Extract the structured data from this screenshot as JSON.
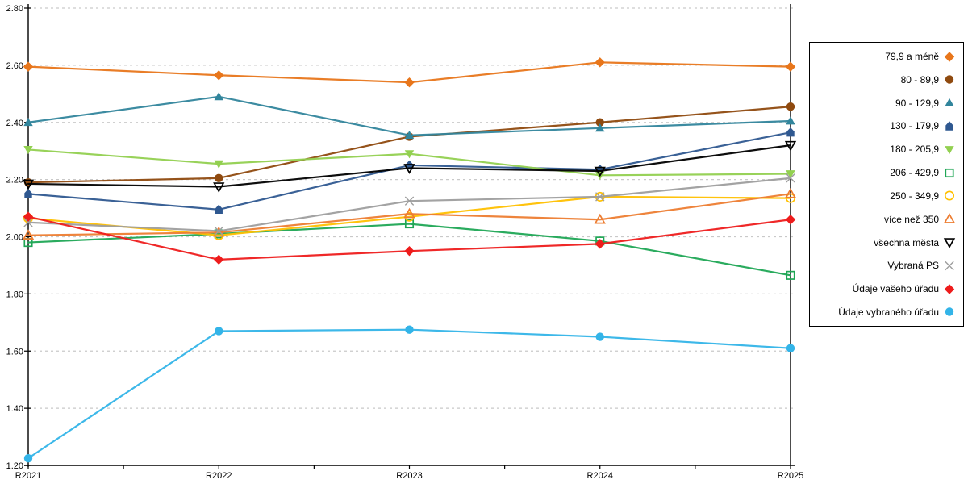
{
  "chart_data": {
    "type": "line",
    "title": "",
    "xlabel": "",
    "ylabel": "",
    "x_categories": [
      "R2021",
      "R2022",
      "R2023",
      "R2024",
      "R2025"
    ],
    "ylim": [
      1.2,
      2.8
    ],
    "ytick_labels": [
      "2.80",
      "2.60",
      "2.40",
      "2.20",
      "2.00",
      "1.80",
      "1.60",
      "1.40",
      "1.20"
    ],
    "grid": "horizontal-dashed",
    "legend_position": "right",
    "series": [
      {
        "name": "79,9 a méně",
        "marker": "diamond",
        "fill": "filled",
        "color": "#E8761B",
        "values": [
          2.595,
          2.565,
          2.54,
          2.61,
          2.595
        ]
      },
      {
        "name": "80 - 89,9",
        "marker": "circle",
        "fill": "filled",
        "color": "#8F4A0F",
        "values": [
          2.19,
          2.205,
          2.35,
          2.4,
          2.455
        ]
      },
      {
        "name": "90 - 129,9",
        "marker": "triangle-up",
        "fill": "filled",
        "color": "#31859C",
        "values": [
          2.4,
          2.49,
          2.355,
          2.38,
          2.405
        ]
      },
      {
        "name": "130 - 179,9",
        "marker": "pentagon",
        "fill": "filled",
        "color": "#2F5890",
        "values": [
          2.15,
          2.095,
          2.25,
          2.235,
          2.365
        ]
      },
      {
        "name": "180 - 205,9",
        "marker": "triangle-down",
        "fill": "filled",
        "color": "#92D050",
        "values": [
          2.305,
          2.255,
          2.29,
          2.215,
          2.22
        ]
      },
      {
        "name": "206 - 429,9",
        "marker": "square",
        "fill": "open",
        "color": "#1FA655",
        "values": [
          1.98,
          2.01,
          2.045,
          1.985,
          1.865
        ]
      },
      {
        "name": "250 - 349,9",
        "marker": "circle",
        "fill": "open",
        "color": "#FFC000",
        "values": [
          2.065,
          2.005,
          2.07,
          2.14,
          2.135
        ]
      },
      {
        "name": "více než 350",
        "marker": "triangle-up",
        "fill": "open",
        "color": "#ED7D31",
        "values": [
          2.005,
          2.015,
          2.08,
          2.06,
          2.15
        ]
      },
      {
        "name": "všechna města",
        "marker": "triangle-down",
        "fill": "open",
        "color": "#000000",
        "values": [
          2.185,
          2.175,
          2.24,
          2.23,
          2.32
        ]
      },
      {
        "name": "Vybraná PS",
        "marker": "x",
        "fill": "open",
        "color": "#9E9E9E",
        "values": [
          2.05,
          2.02,
          2.125,
          2.14,
          2.205
        ]
      },
      {
        "name": "Údaje vašeho úřadu",
        "marker": "diamond",
        "fill": "filled",
        "color": "#EE1C1C",
        "values": [
          2.07,
          1.92,
          1.95,
          1.975,
          2.06
        ]
      },
      {
        "name": "Údaje vybraného úřadu",
        "marker": "circle",
        "fill": "filled",
        "color": "#33B4E8",
        "values": [
          1.225,
          1.67,
          1.675,
          1.65,
          1.61
        ]
      }
    ]
  },
  "colors": {
    "axis": "#000000",
    "gridline": "#C9C9C9",
    "background": "#FFFFFF"
  }
}
